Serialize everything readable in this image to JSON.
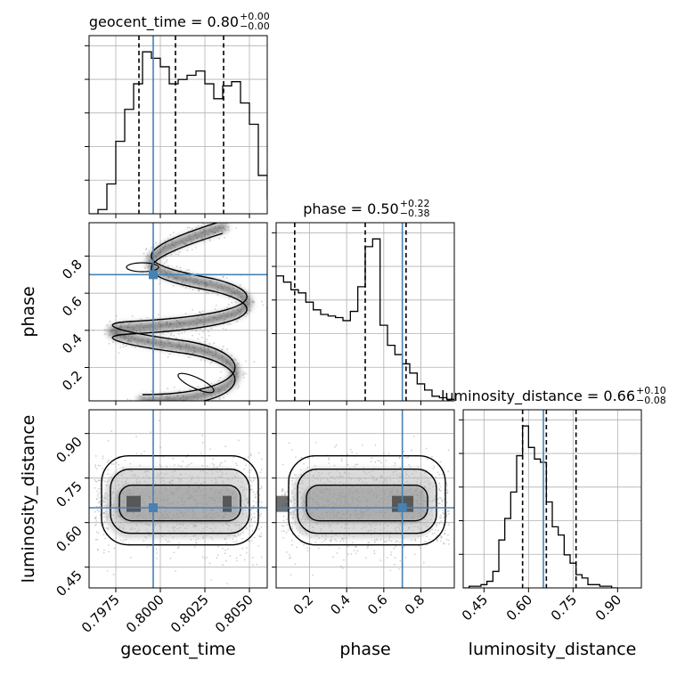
{
  "chart_data": {
    "type": "corner",
    "parameters": [
      "geocent_time",
      "phase",
      "luminosity_distance"
    ],
    "axis_labels": {
      "geocent_time": "geocent_time",
      "phase": "phase",
      "luminosity_distance": "luminosity_distance"
    },
    "ranges": {
      "geocent_time": [
        0.796,
        0.806
      ],
      "phase": [
        0.02,
        0.98
      ],
      "luminosity_distance": [
        0.38,
        0.98
      ]
    },
    "ticks": {
      "geocent_time": [
        0.7975,
        0.8,
        0.8025,
        0.805
      ],
      "phase": [
        0.2,
        0.4,
        0.6,
        0.8
      ],
      "luminosity_distance": [
        0.45,
        0.6,
        0.75,
        0.9
      ]
    },
    "tick_labels": {
      "geocent_time": [
        "0.7975",
        "0.8000",
        "0.8025",
        "0.8050"
      ],
      "phase": [
        "0.2",
        "0.4",
        "0.6",
        "0.8"
      ],
      "luminosity_distance": [
        "0.45",
        "0.60",
        "0.75",
        "0.90"
      ]
    },
    "titles": [
      {
        "param": "geocent_time",
        "text": "geocent_time = 0.80",
        "plus": "+0.00",
        "minus": "−0.00"
      },
      {
        "param": "phase",
        "text": "phase = 0.50",
        "plus": "+0.22",
        "minus": "−0.38"
      },
      {
        "param": "luminosity_distance",
        "text": "luminosity_distance = 0.66",
        "plus": "+0.10",
        "minus": "−0.08"
      }
    ],
    "quantiles": {
      "geocent_time": [
        0.7988,
        0.80085,
        0.80355
      ],
      "phase": [
        0.12,
        0.5,
        0.72
      ],
      "luminosity_distance": [
        0.58,
        0.66,
        0.76
      ]
    },
    "injection": {
      "geocent_time": 0.7996,
      "phase": 0.7,
      "luminosity_distance": 0.65
    },
    "histograms": {
      "geocent_time": {
        "edges_start": 0.796,
        "bin_width": 0.0005,
        "counts": [
          0,
          2,
          14,
          34,
          49,
          61,
          76,
          73,
          69,
          61,
          63,
          65,
          67,
          61,
          54,
          60,
          62,
          52,
          42,
          18,
          7,
          0
        ]
      },
      "phase": {
        "edges_start": 0.02,
        "bin_width": 0.04,
        "counts": [
          81,
          77,
          72,
          70,
          64,
          59,
          56,
          55,
          54,
          52,
          58,
          74,
          100,
          105,
          49,
          36,
          30,
          24,
          18,
          11,
          7,
          3,
          2,
          1
        ]
      },
      "luminosity_distance": {
        "edges_start": 0.38,
        "bin_width": 0.02,
        "counts": [
          0,
          1,
          1,
          2,
          4,
          10,
          29,
          42,
          58,
          80,
          98,
          85,
          78,
          76,
          52,
          37,
          32,
          20,
          15,
          8,
          6,
          2,
          2,
          1,
          1,
          0
        ]
      }
    },
    "joint": {
      "phase_vs_geocent_time": {
        "shape": "S-curve",
        "x_range": [
          0.7969,
          0.8053
        ],
        "y_range": [
          0.03,
          0.93
        ]
      },
      "luminosity_distance_vs_geocent_time": {
        "shape": "horizontal band",
        "x_range": [
          0.7966,
          0.8052
        ],
        "y_center": 0.66
      },
      "luminosity_distance_vs_phase": {
        "shape": "horizontal band with dense cluster near 0.7",
        "x_range": [
          0.02,
          0.96
        ],
        "y_center": 0.66
      }
    },
    "colors": {
      "injection": "#4682b4",
      "lines": "#000000",
      "grid": "#b0b0b0"
    },
    "grid": true
  }
}
